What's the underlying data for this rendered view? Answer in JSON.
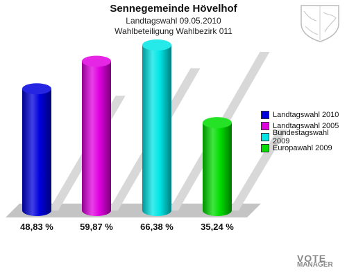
{
  "header": {
    "title": "Sennegemeinde Hövelhof",
    "subtitle1": "Landtagswahl 09.05.2010",
    "subtitle2": "Wahlbeteiligung Wahlbezirk 011"
  },
  "chart_data": {
    "type": "bar",
    "title": "Sennegemeinde Hövelhof",
    "subtitle": "Landtagswahl 09.05.2010 — Wahlbeteiligung Wahlbezirk 011",
    "categories": [
      "Landtagswahl 2010",
      "Landtagswahl 2005",
      "Bundestagswahl 2009",
      "Europawahl 2009"
    ],
    "values": [
      48.83,
      59.87,
      66.38,
      35.24
    ],
    "value_labels": [
      "48,83 %",
      "59,87 %",
      "66,38 %",
      "35,24 %"
    ],
    "colors": [
      "#0000dd",
      "#e000e0",
      "#00e6e6",
      "#00dd00"
    ],
    "ylim": [
      0,
      70
    ],
    "legend_position": "right",
    "grid": false
  },
  "watermark": {
    "line1": "VOTE",
    "line2": "MANAGER"
  }
}
